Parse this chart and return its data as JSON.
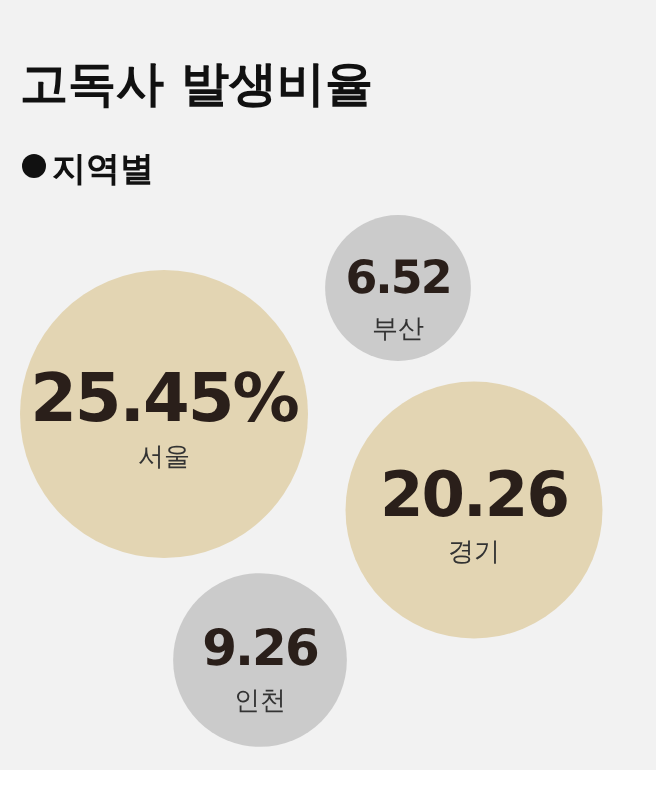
{
  "chart_data": {
    "type": "other",
    "title": "고독사 발생비율",
    "subtitle": "지역별",
    "categories": [
      "부산",
      "서울",
      "경기",
      "인천"
    ],
    "values": [
      6.52,
      25.45,
      20.26,
      9.26
    ],
    "value_labels": [
      "6.52",
      "25.45%",
      "20.26",
      "9.26"
    ],
    "colors": [
      "#cbcbcb",
      "#e3d5b3",
      "#e3d5b3",
      "#cbcbcb"
    ]
  }
}
